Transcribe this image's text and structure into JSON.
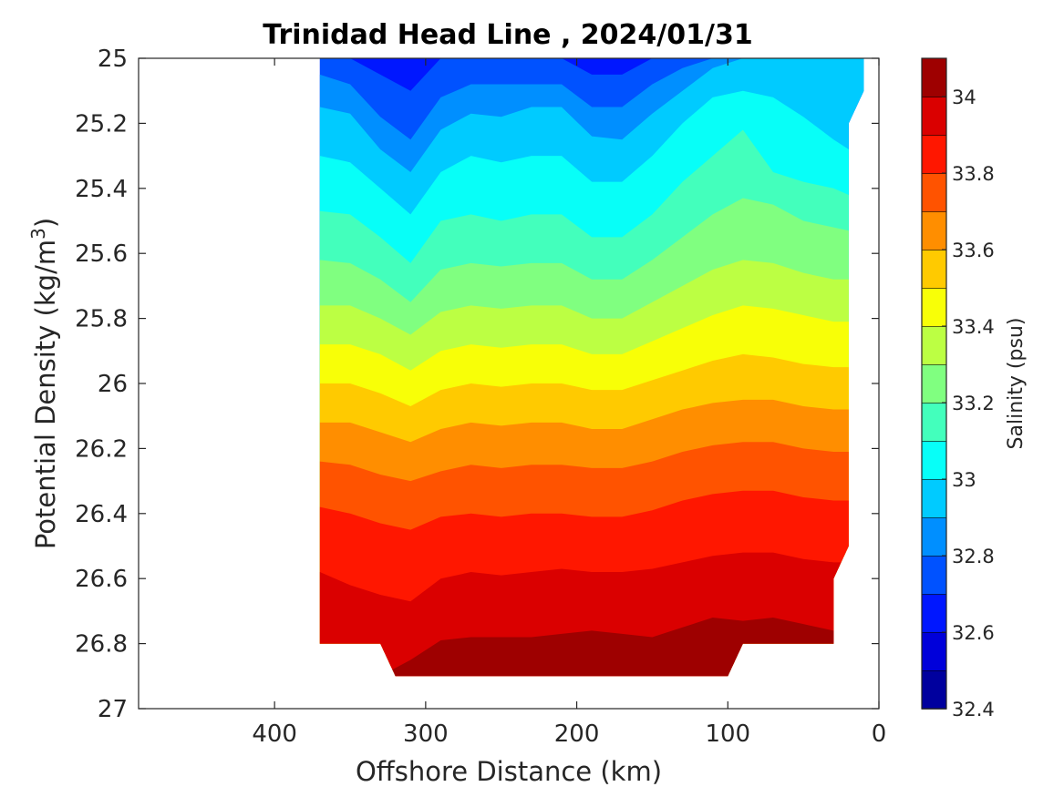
{
  "chart_data": {
    "type": "heatmap",
    "title": "Trinidad Head Line , 2024/01/31",
    "xlabel": "Offshore Distance (km)",
    "ylabel": {
      "text": "Potential Density (kg/m",
      "sup": "3",
      "close": ")"
    },
    "colorbar_label": "Salinity (psu)",
    "xlim": [
      490,
      0
    ],
    "ylim": [
      25,
      27
    ],
    "x_reversed": true,
    "y_reversed": true,
    "x_ticks": [
      400,
      300,
      200,
      100,
      0
    ],
    "y_ticks": [
      25,
      25.2,
      25.4,
      25.6,
      25.8,
      26,
      26.2,
      26.4,
      26.6,
      26.8,
      27
    ],
    "y_tick_labels": [
      "25",
      "25.2",
      "25.4",
      "25.6",
      "25.8",
      "26",
      "26.2",
      "26.4",
      "26.6",
      "26.8",
      "27"
    ],
    "colorbar_ticks": [
      "32.4",
      "32.6",
      "32.8",
      "33",
      "33.2",
      "33.4",
      "33.6",
      "33.8",
      "34"
    ],
    "colorbar_range": [
      32.4,
      34.1
    ],
    "contour_step": 0.1,
    "colormap": "jet",
    "grid": false,
    "stations_km": [
      370,
      350,
      330,
      310,
      290,
      270,
      250,
      230,
      210,
      190,
      170,
      150,
      130,
      110,
      90,
      70,
      50,
      30,
      20
    ],
    "data_domain_lower_boundary": [
      [
        370,
        26.8
      ],
      [
        330,
        26.8
      ],
      [
        320,
        26.9
      ],
      [
        100,
        26.9
      ],
      [
        90,
        26.8
      ],
      [
        30,
        26.8
      ],
      [
        30,
        26.6
      ],
      [
        20,
        26.5
      ],
      [
        20,
        25.2
      ],
      [
        10,
        25.1
      ],
      [
        10,
        25.0
      ]
    ],
    "isohaline_depths": {
      "isohalines": [
        32.7,
        32.8,
        32.9,
        33.0,
        33.1,
        33.2,
        33.3,
        33.4,
        33.5,
        33.6,
        33.7,
        33.8,
        33.9,
        34.0
      ],
      "density_at_station": [
        [
          25.0,
          25.0,
          25.05,
          25.1,
          25.0,
          25.0,
          25.0,
          25.0,
          25.0,
          25.05,
          25.05,
          25.0,
          25.0,
          25.0,
          25.0,
          25.0,
          25.0,
          25.0,
          25.0
        ],
        [
          25.05,
          25.08,
          25.18,
          25.25,
          25.12,
          25.08,
          25.08,
          25.08,
          25.08,
          25.15,
          25.15,
          25.08,
          25.03,
          25.0,
          25.0,
          25.0,
          25.0,
          25.0,
          25.0
        ],
        [
          25.15,
          25.17,
          25.28,
          25.35,
          25.22,
          25.17,
          25.18,
          25.15,
          25.15,
          25.24,
          25.25,
          25.17,
          25.1,
          25.03,
          25.0,
          25.0,
          25.0,
          25.0,
          25.0
        ],
        [
          25.3,
          25.32,
          25.4,
          25.48,
          25.35,
          25.3,
          25.32,
          25.3,
          25.3,
          25.38,
          25.38,
          25.3,
          25.2,
          25.12,
          25.1,
          25.12,
          25.18,
          25.25,
          25.28
        ],
        [
          25.47,
          25.48,
          25.55,
          25.63,
          25.5,
          25.48,
          25.5,
          25.48,
          25.48,
          25.55,
          25.55,
          25.48,
          25.38,
          25.3,
          25.22,
          25.35,
          25.38,
          25.4,
          25.42
        ],
        [
          25.62,
          25.63,
          25.68,
          25.75,
          25.65,
          25.63,
          25.64,
          25.63,
          25.63,
          25.68,
          25.68,
          25.62,
          25.55,
          25.48,
          25.43,
          25.45,
          25.5,
          25.52,
          25.53
        ],
        [
          25.76,
          25.76,
          25.8,
          25.85,
          25.78,
          25.76,
          25.77,
          25.76,
          25.76,
          25.8,
          25.8,
          25.75,
          25.7,
          25.65,
          25.62,
          25.63,
          25.66,
          25.68,
          25.68
        ],
        [
          25.88,
          25.88,
          25.91,
          25.96,
          25.9,
          25.88,
          25.89,
          25.88,
          25.88,
          25.91,
          25.91,
          25.87,
          25.83,
          25.79,
          25.76,
          25.77,
          25.79,
          25.81,
          25.81
        ],
        [
          26.0,
          26.0,
          26.03,
          26.07,
          26.02,
          26.0,
          26.01,
          26.0,
          26.0,
          26.02,
          26.02,
          25.99,
          25.96,
          25.93,
          25.91,
          25.92,
          25.94,
          25.95,
          25.95
        ],
        [
          26.12,
          26.12,
          26.15,
          26.18,
          26.14,
          26.12,
          26.13,
          26.12,
          26.12,
          26.14,
          26.14,
          26.11,
          26.08,
          26.06,
          26.05,
          26.05,
          26.07,
          26.08,
          26.08
        ],
        [
          26.24,
          26.25,
          26.28,
          26.3,
          26.27,
          26.25,
          26.26,
          26.25,
          26.25,
          26.26,
          26.26,
          26.24,
          26.21,
          26.19,
          26.18,
          26.18,
          26.2,
          26.21,
          26.21
        ],
        [
          26.38,
          26.4,
          26.43,
          26.45,
          26.41,
          26.4,
          26.41,
          26.4,
          26.4,
          26.41,
          26.41,
          26.39,
          26.36,
          26.34,
          26.33,
          26.33,
          26.35,
          26.36,
          26.36
        ],
        [
          26.58,
          26.62,
          26.65,
          26.67,
          26.6,
          26.58,
          26.59,
          26.58,
          26.57,
          26.58,
          26.58,
          26.57,
          26.55,
          26.53,
          26.52,
          26.52,
          26.54,
          26.55,
          26.55
        ],
        [
          26.85,
          26.88,
          26.9,
          26.85,
          26.79,
          26.78,
          26.78,
          26.78,
          26.77,
          26.76,
          26.77,
          26.78,
          26.75,
          26.72,
          26.73,
          26.72,
          26.74,
          26.76,
          26.76
        ]
      ]
    }
  }
}
